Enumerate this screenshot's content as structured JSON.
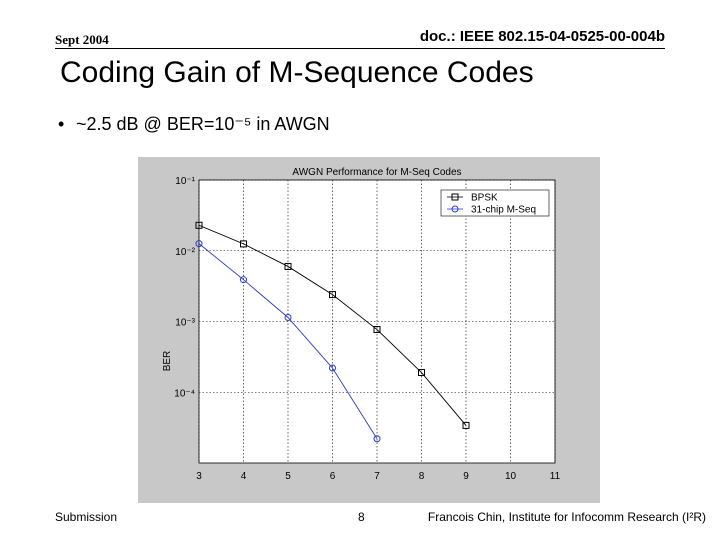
{
  "header": {
    "date": "Sept 2004",
    "doc": "doc.: IEEE 802.15-04-0525-00-004b"
  },
  "title": "Coding Gain of M-Sequence Codes",
  "bullet": "~2.5 dB @ BER=10⁻⁵ in AWGN",
  "footer": {
    "left": "Submission",
    "page": "8",
    "right": "Francois Chin, Institute for Infocomm Research (I²R)"
  },
  "chart_data": {
    "type": "line",
    "title": "AWGN Performance for M-Seq Codes",
    "y_label": "BER",
    "x": [
      3,
      4,
      5,
      6,
      7,
      8,
      9
    ],
    "series": [
      {
        "name": "BPSK",
        "color": "#000000",
        "marker": "square",
        "values": [
          0.0229,
          0.0125,
          0.006,
          0.0024,
          0.00077,
          0.00019,
          3.4e-05
        ]
      },
      {
        "name": "31-chip M-Seq",
        "color": "#2a3cc8",
        "marker": "circle",
        "values": [
          0.0126,
          0.0039,
          0.00114,
          0.00022,
          2.2e-05,
          null,
          null
        ]
      }
    ],
    "xlim": [
      3,
      11
    ],
    "xticks": [
      3,
      4,
      5,
      6,
      7,
      8,
      9,
      10,
      11
    ],
    "ylim": [
      1e-05,
      0.1
    ],
    "log_y": true,
    "yticks": [
      {
        "value": 0.1,
        "label": "10⁻¹"
      },
      {
        "value": 0.01,
        "label": "10⁻²"
      },
      {
        "value": 0.001,
        "label": "10⁻³"
      },
      {
        "value": 0.0001,
        "label": "10⁻⁴"
      }
    ],
    "grid": true,
    "legend": "top-right"
  }
}
